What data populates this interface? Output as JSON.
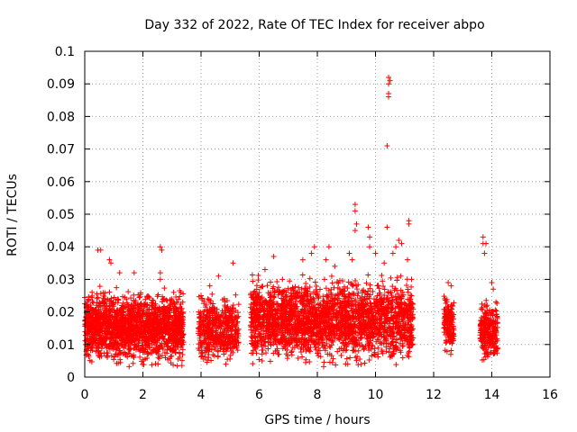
{
  "chart_data": {
    "type": "scatter",
    "title": "Day 332 of 2022, Rate Of TEC Index for receiver abpo",
    "xlabel": "GPS time / hours",
    "ylabel": "ROTI / TECUs",
    "xlim": [
      0,
      16
    ],
    "ylim": [
      0,
      0.1
    ],
    "x_ticks": [
      0,
      2,
      4,
      6,
      8,
      10,
      12,
      14,
      16
    ],
    "y_ticks": [
      0,
      0.01,
      0.02,
      0.03,
      0.04,
      0.05,
      0.06,
      0.07,
      0.08,
      0.09,
      0.1
    ],
    "x_tick_labels": [
      "0",
      "2",
      "4",
      "6",
      "8",
      "10",
      "12",
      "14",
      "16"
    ],
    "y_tick_labels": [
      "0",
      "0.01",
      "0.02",
      "0.03",
      "0.04",
      "0.05",
      "0.06",
      "0.07",
      "0.08",
      "0.09",
      "0.1"
    ],
    "grid": true,
    "marker": "+",
    "color": "#ff0000",
    "clusters": [
      {
        "x_range": [
          0.0,
          3.4
        ],
        "y_range": [
          0.003,
          0.028
        ],
        "count": 1800
      },
      {
        "x_range": [
          3.9,
          5.3
        ],
        "y_range": [
          0.003,
          0.026
        ],
        "count": 500
      },
      {
        "x_range": [
          5.7,
          11.3
        ],
        "y_range": [
          0.003,
          0.032
        ],
        "count": 2400
      },
      {
        "x_range": [
          12.35,
          12.7
        ],
        "y_range": [
          0.006,
          0.026
        ],
        "count": 150
      },
      {
        "x_range": [
          13.6,
          14.2
        ],
        "y_range": [
          0.004,
          0.024
        ],
        "count": 250
      }
    ],
    "series": [
      {
        "name": "ROTI",
        "points": [
          [
            0.45,
            0.039
          ],
          [
            0.55,
            0.039
          ],
          [
            0.85,
            0.036
          ],
          [
            0.9,
            0.035
          ],
          [
            1.2,
            0.032
          ],
          [
            1.7,
            0.032
          ],
          [
            2.6,
            0.04
          ],
          [
            2.65,
            0.039
          ],
          [
            2.6,
            0.03
          ],
          [
            2.6,
            0.032
          ],
          [
            4.0,
            0.025
          ],
          [
            4.3,
            0.028
          ],
          [
            4.6,
            0.031
          ],
          [
            5.1,
            0.035
          ],
          [
            6.2,
            0.033
          ],
          [
            6.5,
            0.037
          ],
          [
            6.8,
            0.03
          ],
          [
            7.5,
            0.036
          ],
          [
            7.8,
            0.038
          ],
          [
            7.9,
            0.04
          ],
          [
            8.3,
            0.036
          ],
          [
            8.4,
            0.04
          ],
          [
            8.6,
            0.034
          ],
          [
            9.3,
            0.053
          ],
          [
            9.3,
            0.051
          ],
          [
            9.35,
            0.047
          ],
          [
            9.3,
            0.045
          ],
          [
            9.2,
            0.036
          ],
          [
            9.1,
            0.038
          ],
          [
            9.8,
            0.04
          ],
          [
            9.75,
            0.046
          ],
          [
            9.8,
            0.043
          ],
          [
            10.0,
            0.038
          ],
          [
            10.3,
            0.035
          ],
          [
            10.4,
            0.071
          ],
          [
            10.45,
            0.086
          ],
          [
            10.45,
            0.087
          ],
          [
            10.45,
            0.09
          ],
          [
            10.5,
            0.091
          ],
          [
            10.45,
            0.092
          ],
          [
            10.4,
            0.046
          ],
          [
            10.6,
            0.038
          ],
          [
            10.7,
            0.04
          ],
          [
            10.8,
            0.042
          ],
          [
            10.9,
            0.041
          ],
          [
            11.15,
            0.048
          ],
          [
            11.15,
            0.047
          ],
          [
            11.1,
            0.036
          ],
          [
            12.5,
            0.029
          ],
          [
            12.6,
            0.028
          ],
          [
            13.7,
            0.043
          ],
          [
            13.7,
            0.041
          ],
          [
            13.75,
            0.038
          ],
          [
            13.8,
            0.041
          ],
          [
            14.0,
            0.029
          ],
          [
            14.05,
            0.027
          ]
        ]
      }
    ]
  }
}
